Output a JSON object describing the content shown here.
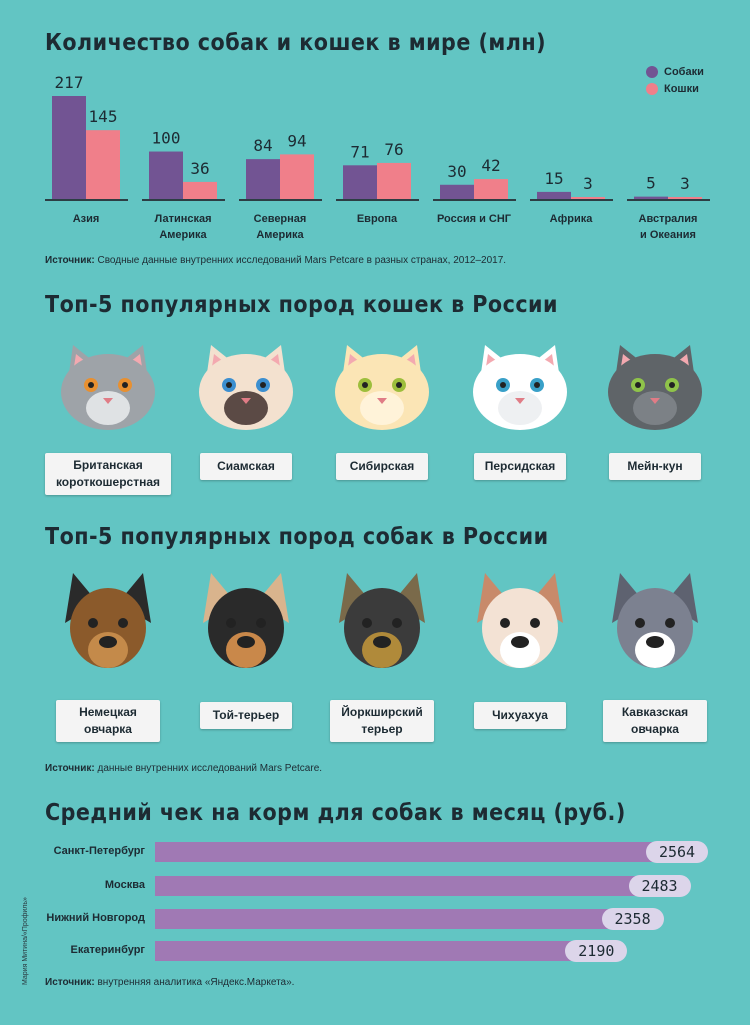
{
  "section1": {
    "title": "Количество собак и кошек в мире (млн)",
    "legend": {
      "dogs": "Собаки",
      "cats": "Кошки"
    },
    "source_label": "Источник:",
    "source_text": " Сводные данные внутренних исследований Mars Petcare в разных странах, 2012–2017."
  },
  "section2": {
    "title": "Топ-5 популярных пород кошек в России",
    "breeds": [
      "Британская короткошерстная",
      "Сиамская",
      "Сибирская",
      "Персидская",
      "Мейн-кун"
    ]
  },
  "section3": {
    "title": "Топ-5 популярных пород собак в России",
    "breeds": [
      "Немецкая овчарка",
      "Той-терьер",
      "Йоркширский терьер",
      "Чихуахуа",
      "Кавказская овчарка"
    ],
    "source_label": "Источник:",
    "source_text": " данные внутренних исследований Mars Petcare."
  },
  "section4": {
    "title": "Средний чек на корм для собак в месяц (руб.)",
    "source_label": "Источник:",
    "source_text": " внутренняя аналитика «Яндекс.Маркета»."
  },
  "credit": "Мария Митина/«Профиль»",
  "colors": {
    "background": "#62c5c3",
    "dogs": "#725493",
    "cats": "#f07f8a",
    "hbar": "#a079b4",
    "pill": "#dcd5ea"
  },
  "chart_data": [
    {
      "type": "bar",
      "title": "Количество собак и кошек в мире (млн)",
      "categories": [
        "Азия",
        "Латинская Америка",
        "Северная Америка",
        "Европа",
        "Россия и СНГ",
        "Африка",
        "Австралия и Океания"
      ],
      "series": [
        {
          "name": "Собаки",
          "values": [
            217,
            100,
            84,
            71,
            30,
            15,
            5
          ]
        },
        {
          "name": "Кошки",
          "values": [
            145,
            36,
            94,
            76,
            42,
            3,
            3
          ]
        }
      ],
      "legend": "top-right",
      "ylim": [
        0,
        217
      ]
    },
    {
      "type": "bar",
      "orientation": "horizontal",
      "title": "Средний чек на корм для собак в месяц (руб.)",
      "categories": [
        "Санкт-Петербург",
        "Москва",
        "Нижний Новгород",
        "Екатеринбург"
      ],
      "values": [
        2564,
        2483,
        2358,
        2190
      ]
    }
  ]
}
